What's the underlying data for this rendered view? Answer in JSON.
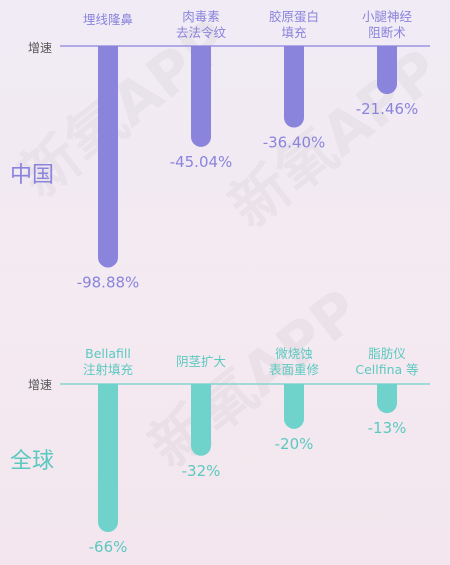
{
  "chart_data": [
    {
      "type": "bar",
      "region_label": "中国",
      "axis_label": "增速",
      "categories": [
        [
          "埋线隆鼻"
        ],
        [
          "肉毒素",
          "去法令纹"
        ],
        [
          "胶原蛋白",
          "填充"
        ],
        [
          "小腿神经",
          "阻断术"
        ]
      ],
      "values": [
        -98.88,
        -45.04,
        -36.4,
        -21.46
      ],
      "value_labels": [
        "-98.88%",
        "-45.04%",
        "-36.40%",
        "-21.46%"
      ],
      "ylim": [
        -100,
        0
      ],
      "color": "#8a84dd",
      "label_color": "#8a84dd"
    },
    {
      "type": "bar",
      "region_label": "全球",
      "axis_label": "增速",
      "categories": [
        [
          "Bellafill",
          "注射填充"
        ],
        [
          "阴茎扩大"
        ],
        [
          "微烧蚀",
          "表面重修"
        ],
        [
          "脂肪仪",
          "Cellfina 等"
        ]
      ],
      "values": [
        -66,
        -32,
        -20,
        -13
      ],
      "value_labels": [
        "-66%",
        "-32%",
        "-20%",
        "-13%"
      ],
      "ylim": [
        -66,
        0
      ],
      "color": "#6fd3cb",
      "label_color": "#5cc9c0"
    }
  ],
  "watermark": "新氧APP"
}
